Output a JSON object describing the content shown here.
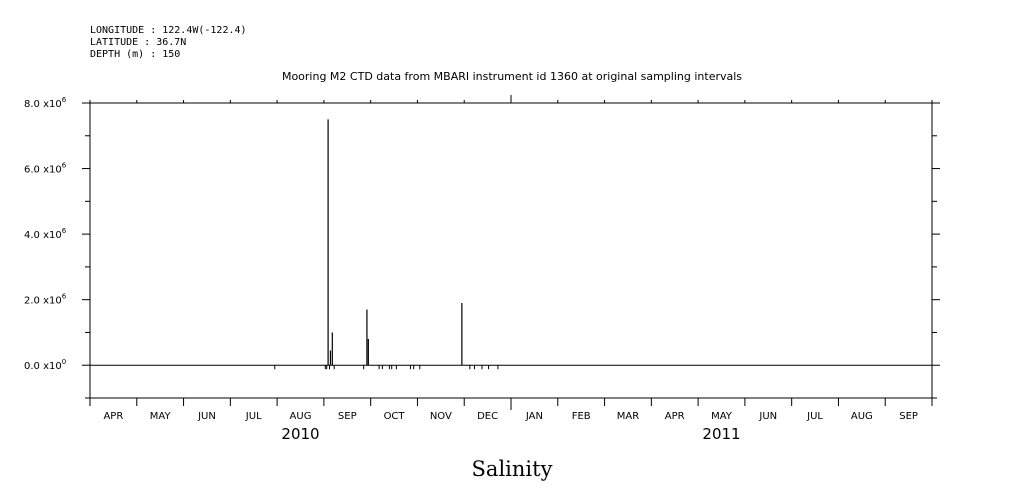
{
  "meta": {
    "longitude": "LONGITUDE : 122.4W(-122.4)",
    "latitude": "LATITUDE : 36.7N",
    "depth": "DEPTH (m) : 150"
  },
  "chart_data": {
    "type": "bar",
    "title": "Mooring M2 CTD data from MBARI instrument id 1360 at original sampling intervals",
    "xlabel": "Salinity",
    "ylabel": "",
    "x_range_months": [
      "2010-04",
      "2011-09"
    ],
    "month_ticks": [
      "APR",
      "MAY",
      "JUN",
      "JUL",
      "AUG",
      "SEP",
      "OCT",
      "NOV",
      "DEC",
      "JAN",
      "FEB",
      "MAR",
      "APR",
      "MAY",
      "JUN",
      "JUL",
      "AUG",
      "SEP"
    ],
    "years": [
      {
        "label": "2010",
        "center_month_index": 4.5
      },
      {
        "label": "2011",
        "center_month_index": 13.5
      }
    ],
    "ylim": [
      -1000000,
      8000000
    ],
    "y_ticks": [
      {
        "value": 0,
        "mantissa": "0.0",
        "exp": "0"
      },
      {
        "value": 2000000,
        "mantissa": "2.0",
        "exp": "6"
      },
      {
        "value": 4000000,
        "mantissa": "4.0",
        "exp": "6"
      },
      {
        "value": 6000000,
        "mantissa": "6.0",
        "exp": "6"
      },
      {
        "value": 8000000,
        "mantissa": "8.0",
        "exp": "6"
      }
    ],
    "baseline": 0,
    "spikes": [
      {
        "t": 5.09,
        "value": 7500000
      },
      {
        "t": 5.14,
        "value": 450000
      },
      {
        "t": 5.18,
        "value": 1000000
      },
      {
        "t": 5.92,
        "value": 1700000
      },
      {
        "t": 5.95,
        "value": 800000
      },
      {
        "t": 7.95,
        "value": 1900000
      }
    ],
    "dips": [
      3.95,
      5.03,
      5.06,
      5.12,
      5.22,
      5.85,
      6.18,
      6.25,
      6.4,
      6.45,
      6.55,
      6.85,
      6.92,
      7.05,
      8.12,
      8.22,
      8.38,
      8.52,
      8.72
    ]
  }
}
